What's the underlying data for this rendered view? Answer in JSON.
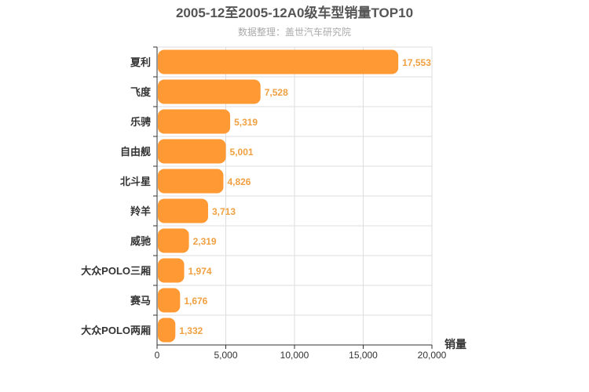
{
  "chart_data": {
    "type": "bar",
    "orientation": "horizontal",
    "title": "2005-12至2005-12A0级车型销量TOP10",
    "subtitle": "数据整理：盖世汽车研究院",
    "xlabel": "销量",
    "ylabel": "",
    "xlim": [
      0,
      20000
    ],
    "xticks": [
      0,
      5000,
      10000,
      15000,
      20000
    ],
    "xtick_labels": [
      "0",
      "5,000",
      "10,000",
      "15,000",
      "20,000"
    ],
    "categories": [
      "夏利",
      "飞度",
      "乐骋",
      "自由舰",
      "北斗星",
      "羚羊",
      "威驰",
      "大众POLO三厢",
      "赛马",
      "大众POLO两厢"
    ],
    "values": [
      17553,
      7528,
      5319,
      5001,
      4826,
      3713,
      2319,
      1974,
      1676,
      1332
    ],
    "value_labels": [
      "17,553",
      "7,528",
      "5,319",
      "5,001",
      "4,826",
      "3,713",
      "2,319",
      "1,974",
      "1,676",
      "1,332"
    ],
    "grid": true,
    "bar_color": "#ff9933",
    "label_color": "#f0a040"
  }
}
